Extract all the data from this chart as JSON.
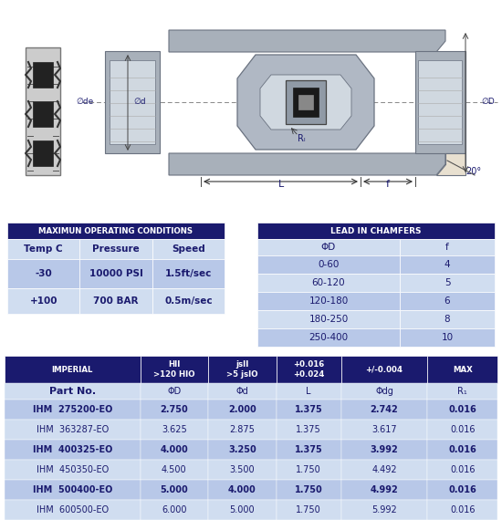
{
  "bg_color": "#ffffff",
  "dark_blue": "#1a1a6e",
  "light_blue": "#b8c8e8",
  "lighter_blue": "#d0ddf0",
  "header_text_color": "#ffffff",
  "body_text_color": "#1a1a6e",
  "max_cond_title": "MAXIMUN OPERATING CONDITIONS",
  "max_cond_headers": [
    "Temp C",
    "Pressure",
    "Speed"
  ],
  "max_cond_rows": [
    [
      "-30",
      "10000 PSI",
      "1.5ft/sec"
    ],
    [
      "+100",
      "700 BAR",
      "0.5m/sec"
    ]
  ],
  "chamfer_title": "LEAD IN CHAMFERS",
  "chamfer_headers": [
    "ΦD",
    "f"
  ],
  "chamfer_rows": [
    [
      "0-60",
      "4"
    ],
    [
      "60-120",
      "5"
    ],
    [
      "120-180",
      "6"
    ],
    [
      "180-250",
      "8"
    ],
    [
      "250-400",
      "10"
    ]
  ],
  "imperial_header": [
    "IMPERIAL",
    "HII\n>120 HIO",
    "jsII\n>5 jsIO",
    "+0.016\n+0.024",
    "+/-0.004",
    "MAX"
  ],
  "imperial_subheader": [
    "Part No.",
    "ΦD",
    "Φd",
    "L",
    "Φdg",
    "R₁"
  ],
  "imperial_rows": [
    [
      "IHM  275200-EO",
      "2.750",
      "2.000",
      "1.375",
      "2.742",
      "0.016"
    ],
    [
      "IHM  363287-EO",
      "3.625",
      "2.875",
      "1.375",
      "3.617",
      "0.016"
    ],
    [
      "IHM  400325-EO",
      "4.000",
      "3.250",
      "1.375",
      "3.992",
      "0.016"
    ],
    [
      "IHM  450350-EO",
      "4.500",
      "3.500",
      "1.750",
      "4.492",
      "0.016"
    ],
    [
      "IHM  500400-EO",
      "5.000",
      "4.000",
      "1.750",
      "4.992",
      "0.016"
    ],
    [
      "IHM  600500-EO",
      "6.000",
      "5.000",
      "1.750",
      "5.992",
      "0.016"
    ]
  ]
}
